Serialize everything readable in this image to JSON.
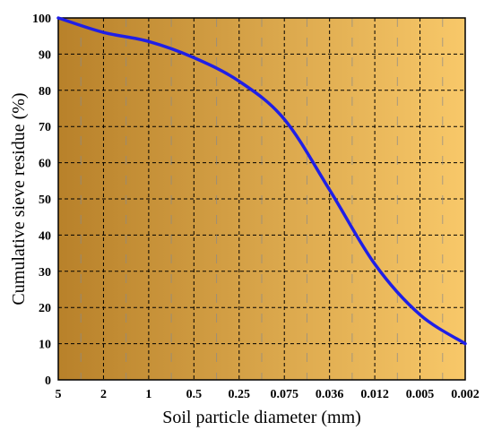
{
  "chart_data": {
    "type": "line",
    "title": "",
    "xlabel": "Soil particle diameter (mm)",
    "ylabel": "Cumulative sieve residue (%)",
    "x_tick_labels": [
      "5",
      "2",
      "1",
      "0.5",
      "0.25",
      "0.075",
      "0.036",
      "0.012",
      "0.005",
      "0.002"
    ],
    "y_ticks": [
      0,
      10,
      20,
      30,
      40,
      50,
      60,
      70,
      80,
      90,
      100
    ],
    "ylim": [
      0,
      100
    ],
    "grid": true,
    "series": [
      {
        "x": [
          "5",
          "2",
          "1",
          "0.5",
          "0.25",
          "0.075",
          "0.036",
          "0.012",
          "0.005",
          "0.002"
        ],
        "values": [
          100,
          96,
          93.5,
          89,
          82.5,
          72,
          52.5,
          32,
          18,
          10
        ],
        "color": "#1f1fe6"
      }
    ],
    "colors": {
      "background_left": "#b8812a",
      "background_right": "#f8c869",
      "line": "#1f1fe6",
      "grid": "#000000"
    }
  }
}
